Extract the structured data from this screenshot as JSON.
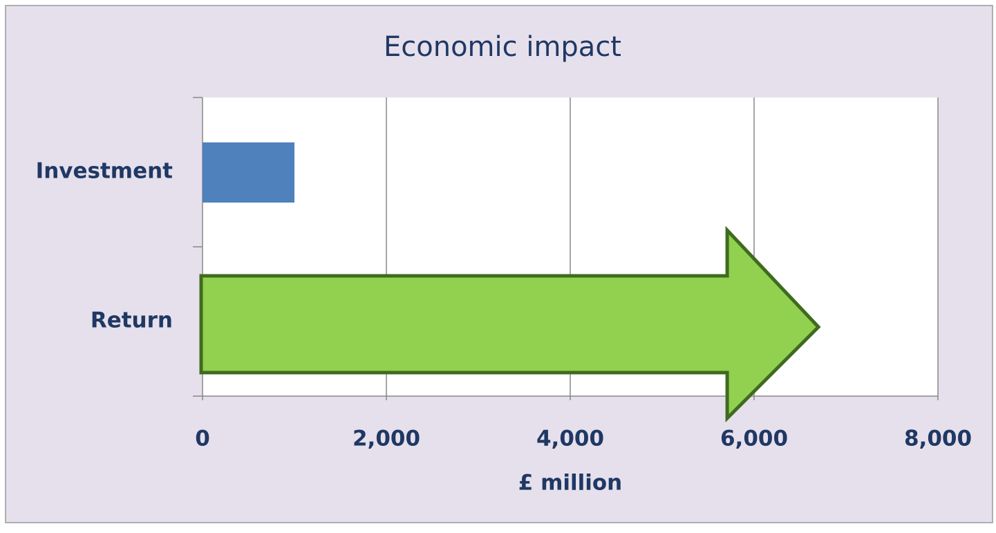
{
  "chart_data": {
    "type": "bar",
    "orientation": "horizontal",
    "title": "Economic impact",
    "categories": [
      "Investment",
      "Return"
    ],
    "values": [
      1000,
      6700
    ],
    "colors": [
      "#4f81bd",
      "#92d050"
    ],
    "xlabel": "£ million",
    "xlim": [
      0,
      8000
    ],
    "xticks": [
      0,
      {
        "value": 2000,
        "label": "2,000"
      },
      {
        "value": 4000,
        "label": "4,000"
      },
      {
        "value": 6000,
        "label": "6,000"
      },
      {
        "value": 8000,
        "label": "8,000"
      }
    ],
    "grid": true
  }
}
